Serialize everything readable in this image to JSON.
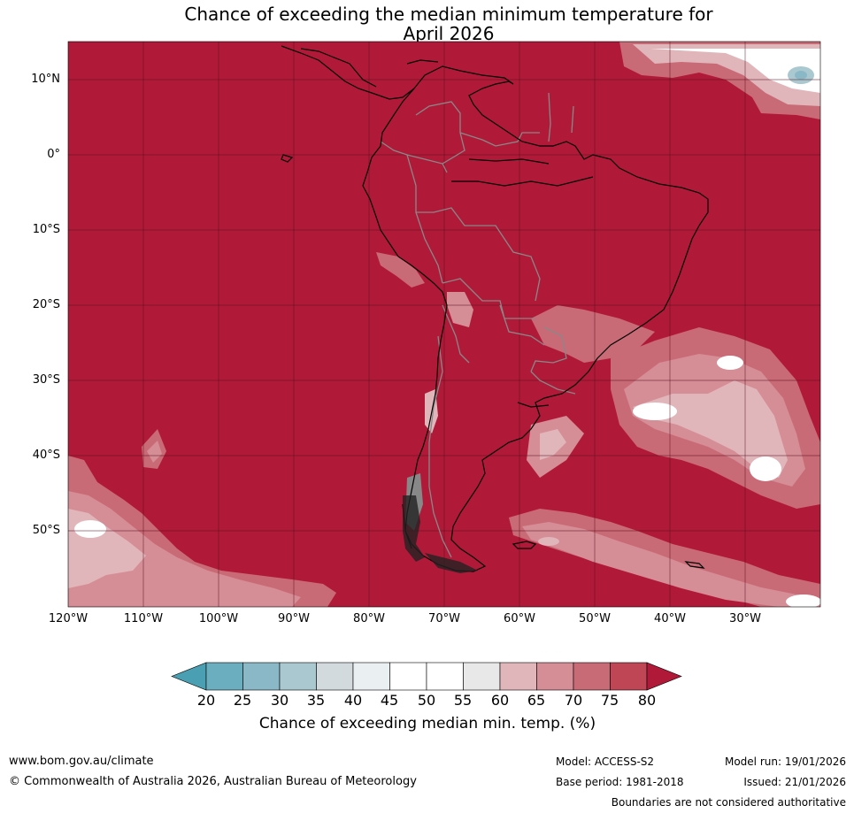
{
  "title": {
    "line1": "Chance of exceeding the median minimum temperature for",
    "line2": "April 2026"
  },
  "axes": {
    "lat_ticks": [
      "10°N",
      "0°",
      "10°S",
      "20°S",
      "30°S",
      "40°S",
      "50°S"
    ],
    "lon_ticks": [
      "120°W",
      "110°W",
      "100°W",
      "90°W",
      "80°W",
      "70°W",
      "60°W",
      "50°W",
      "40°W",
      "30°W"
    ]
  },
  "colorbar": {
    "ticks": [
      "20",
      "25",
      "30",
      "35",
      "40",
      "45",
      "50",
      "55",
      "60",
      "65",
      "70",
      "75",
      "80"
    ],
    "colors": [
      "#4a9fb2",
      "#6aaec0",
      "#8ab8c7",
      "#a9c8cf",
      "#d2dadd",
      "#eaf0f2",
      "#ffffff",
      "#ffffff",
      "#e8e8e8",
      "#e0b6bb",
      "#d58d96",
      "#c96b77",
      "#bf4655",
      "#b01a38"
    ],
    "label": "Chance of exceeding median min. temp. (%)"
  },
  "footer": {
    "website": "www.bom.gov.au/climate",
    "copyright": "© Commonwealth of Australia 2026, Australian Bureau of Meteorology",
    "model": "Model: ACCESS-S2",
    "base_period": "Base period: 1981-2018",
    "model_run": "Model run: 19/01/2026",
    "issued": "Issued: 21/01/2026",
    "disclaimer": "Boundaries are not considered authoritative"
  },
  "map": {
    "background_color": "#b01a38",
    "gridline_color": "#5a0f1e",
    "coastline_color": "#000000",
    "border_color": "#888888"
  }
}
